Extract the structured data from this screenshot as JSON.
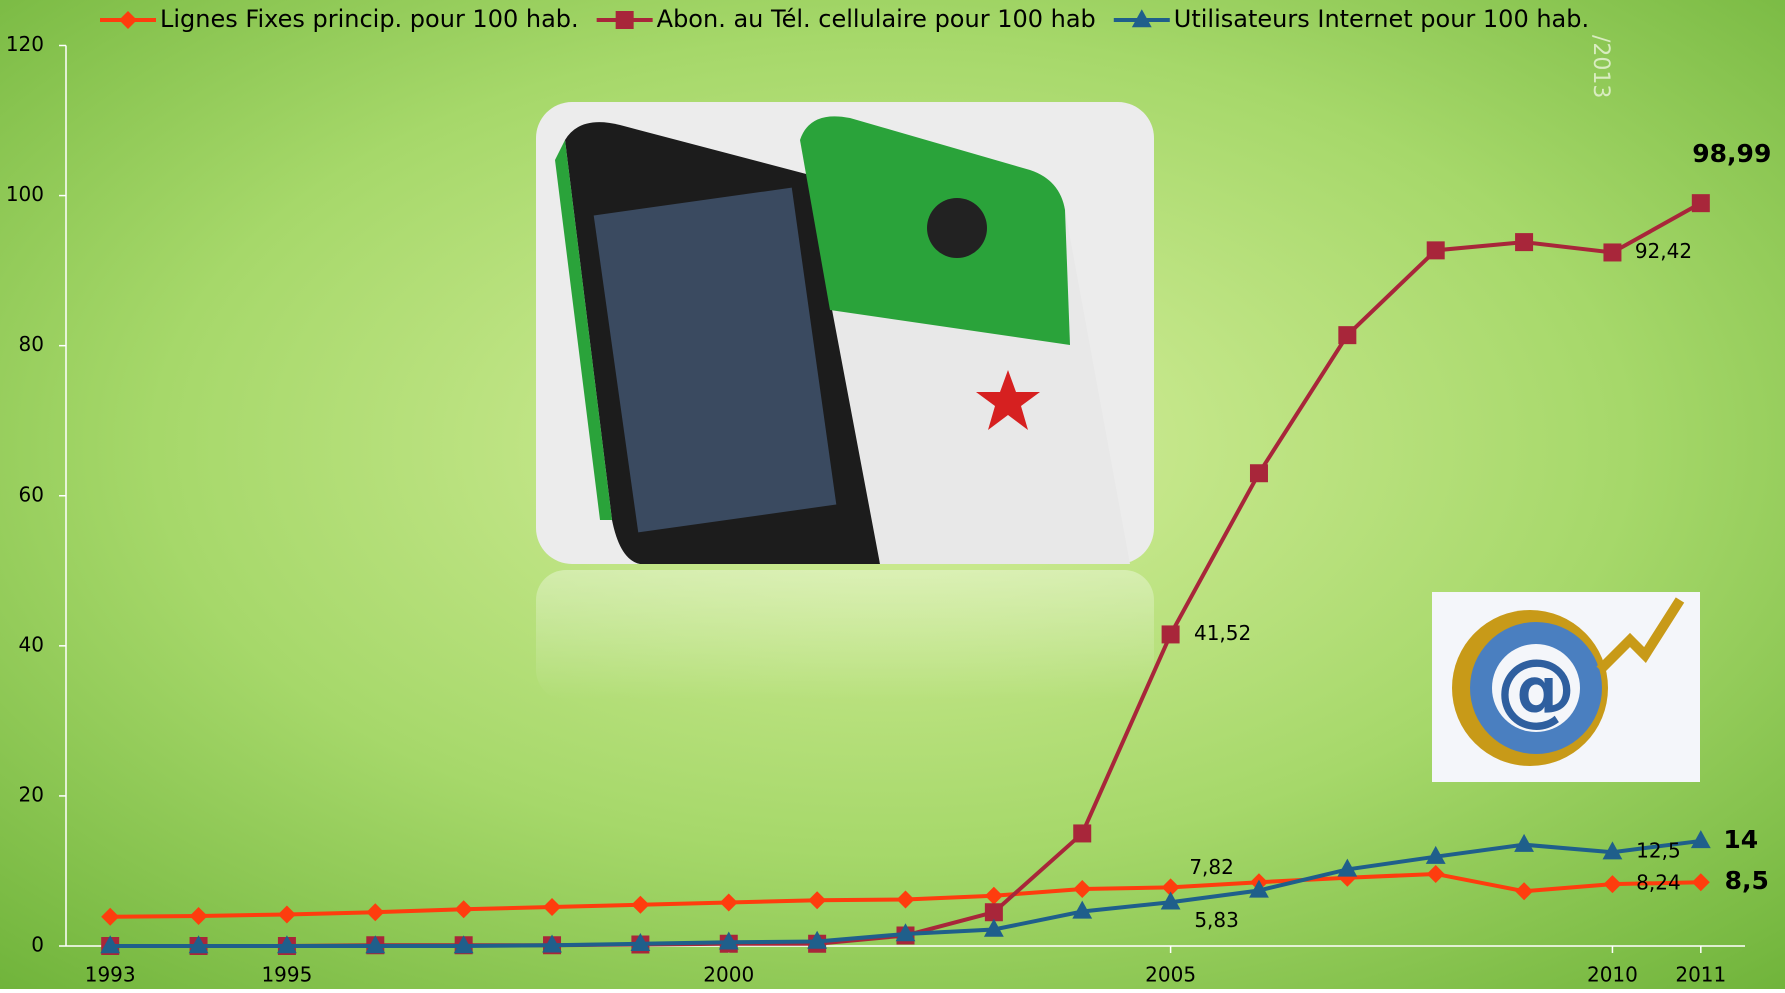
{
  "chart_data": {
    "type": "line",
    "watermark": "/2013",
    "x": [
      1993,
      1994,
      1995,
      1996,
      1997,
      1998,
      1999,
      2000,
      2001,
      2002,
      2003,
      2004,
      2005,
      2006,
      2007,
      2008,
      2009,
      2010,
      2011
    ],
    "xlim": [
      1992.5,
      2011.5
    ],
    "xticks": [
      1993,
      1995,
      2000,
      2005,
      2010,
      2011
    ],
    "ylim": [
      0,
      120
    ],
    "yticks": [
      0,
      20,
      40,
      60,
      80,
      100,
      120
    ],
    "legend": "top",
    "series": [
      {
        "name": "Lignes Fixes princip. pour 100 hab.",
        "color": "#fe3d0e",
        "marker": "diamond",
        "values": [
          3.9,
          4.0,
          4.2,
          4.5,
          4.9,
          5.2,
          5.5,
          5.8,
          6.1,
          6.2,
          6.7,
          7.6,
          7.82,
          8.5,
          9.1,
          9.6,
          7.3,
          8.24,
          8.5
        ],
        "value_labels": [
          null,
          null,
          null,
          null,
          null,
          null,
          null,
          null,
          null,
          null,
          null,
          null,
          "7,82",
          null,
          null,
          null,
          null,
          "8,24",
          "8,5"
        ]
      },
      {
        "name": "Abon. au Tél. cellulaire pour 100 hab",
        "color": "#a8263a",
        "marker": "square",
        "values": [
          0.0,
          0.0,
          0.0,
          0.1,
          0.1,
          0.1,
          0.2,
          0.3,
          0.3,
          1.4,
          4.5,
          15,
          41.52,
          63,
          81.4,
          92.7,
          93.8,
          92.42,
          98.99
        ],
        "value_labels": [
          null,
          null,
          null,
          null,
          null,
          null,
          null,
          null,
          null,
          null,
          null,
          null,
          "41,52",
          null,
          null,
          null,
          null,
          "92,42",
          "98,99"
        ]
      },
      {
        "name": "Utilisateurs Internet pour 100 hab.",
        "color": "#1f5f8b",
        "marker": "triangle",
        "values": [
          0.0,
          0.0,
          0.0,
          0.0,
          0.0,
          0.1,
          0.3,
          0.5,
          0.6,
          1.6,
          2.2,
          4.6,
          5.83,
          7.4,
          10.2,
          11.9,
          13.5,
          12.5,
          14
        ],
        "value_labels": [
          null,
          null,
          null,
          null,
          null,
          null,
          null,
          null,
          null,
          null,
          null,
          null,
          "5,83",
          null,
          null,
          null,
          null,
          "12,5",
          "14"
        ]
      }
    ]
  }
}
